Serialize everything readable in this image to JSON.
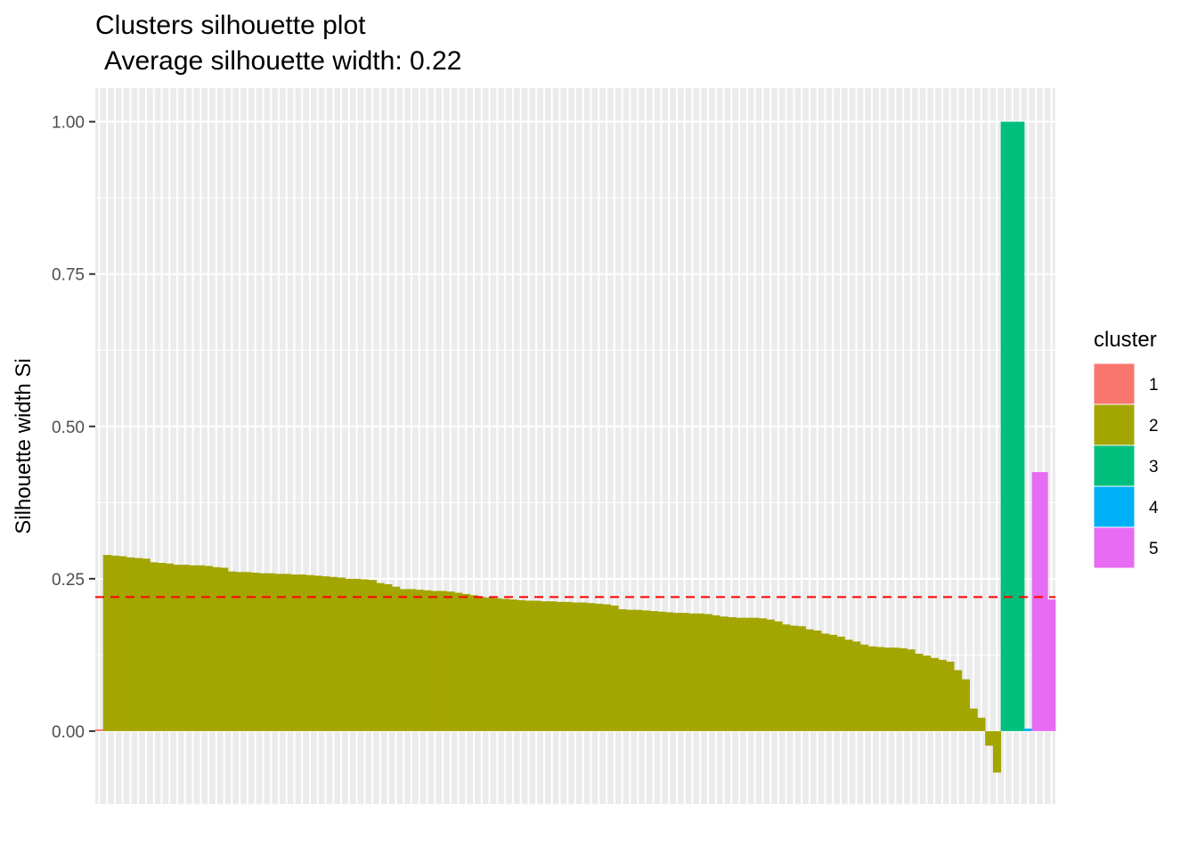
{
  "chart_data": {
    "type": "bar",
    "title": "Clusters silhouette plot",
    "subtitle": "Average silhouette width: 0.22",
    "xlabel": "",
    "ylabel": "Silhouette width Si",
    "ylim": [
      -0.12,
      1.055
    ],
    "yticks": [
      "0.00",
      "0.25",
      "0.50",
      "0.75",
      "1.00"
    ],
    "ytick_values": [
      0,
      0.25,
      0.5,
      0.75,
      1.0
    ],
    "average_line": 0.22,
    "average_line_color": "#ff0000",
    "grid": true,
    "legend_placement": "right",
    "legend": {
      "title": "cluster",
      "entries": [
        {
          "label": "1",
          "color": "#F8766D"
        },
        {
          "label": "2",
          "color": "#A3A500"
        },
        {
          "label": "3",
          "color": "#00BF7D"
        },
        {
          "label": "4",
          "color": "#00B0F6"
        },
        {
          "label": "5",
          "color": "#E76BF3"
        }
      ]
    },
    "cluster_colors": {
      "1": "#F8766D",
      "2": "#A3A500",
      "3": "#00BF7D",
      "4": "#00B0F6",
      "5": "#E76BF3"
    },
    "series": [
      {
        "cluster": "1",
        "values": [
          0.0
        ]
      },
      {
        "cluster": "2",
        "values": [
          0.289,
          0.288,
          0.287,
          0.285,
          0.284,
          0.283,
          0.277,
          0.276,
          0.275,
          0.273,
          0.273,
          0.272,
          0.272,
          0.271,
          0.269,
          0.268,
          0.262,
          0.261,
          0.261,
          0.26,
          0.259,
          0.259,
          0.258,
          0.258,
          0.257,
          0.257,
          0.256,
          0.255,
          0.254,
          0.253,
          0.252,
          0.25,
          0.25,
          0.249,
          0.248,
          0.243,
          0.241,
          0.237,
          0.233,
          0.233,
          0.232,
          0.231,
          0.23,
          0.23,
          0.229,
          0.227,
          0.225,
          0.223,
          0.22,
          0.219,
          0.218,
          0.217,
          0.216,
          0.215,
          0.214,
          0.214,
          0.213,
          0.213,
          0.212,
          0.212,
          0.211,
          0.211,
          0.21,
          0.209,
          0.208,
          0.206,
          0.2,
          0.199,
          0.199,
          0.198,
          0.197,
          0.196,
          0.195,
          0.194,
          0.194,
          0.193,
          0.193,
          0.192,
          0.19,
          0.188,
          0.187,
          0.186,
          0.186,
          0.186,
          0.185,
          0.183,
          0.18,
          0.175,
          0.173,
          0.172,
          0.167,
          0.165,
          0.16,
          0.158,
          0.155,
          0.15,
          0.147,
          0.142,
          0.139,
          0.138,
          0.137,
          0.137,
          0.136,
          0.134,
          0.127,
          0.124,
          0.12,
          0.117,
          0.114,
          0.1,
          0.085,
          0.037,
          0.022,
          -0.024,
          -0.068
        ]
      },
      {
        "cluster": "3",
        "values": [
          1.0,
          1.0,
          1.0
        ]
      },
      {
        "cluster": "4",
        "values": [
          0.004
        ]
      },
      {
        "cluster": "5",
        "values": [
          0.425,
          0.425,
          0.216
        ]
      }
    ]
  }
}
